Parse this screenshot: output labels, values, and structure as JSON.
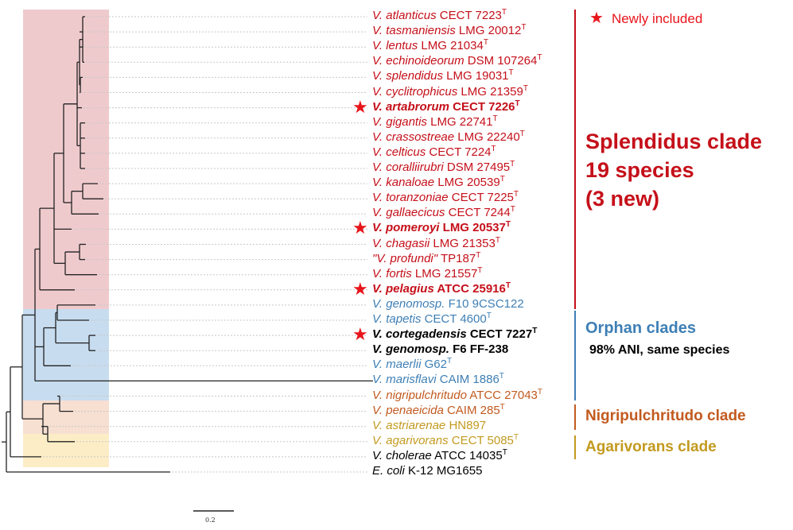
{
  "legend": {
    "star_label": "Newly included"
  },
  "taxa": [
    {
      "species": "V. atlanticus",
      "strain": "CECT 7223",
      "type": true,
      "group": "red",
      "bold": false,
      "new": false
    },
    {
      "species": "V. tasmaniensis",
      "strain": "LMG 20012",
      "type": true,
      "group": "red",
      "bold": false,
      "new": false
    },
    {
      "species": "V. lentus",
      "strain": "LMG 21034",
      "type": true,
      "group": "red",
      "bold": false,
      "new": false
    },
    {
      "species": "V. echinoideorum",
      "strain": "DSM 107264",
      "type": true,
      "group": "red",
      "bold": false,
      "new": false
    },
    {
      "species": "V. splendidus",
      "strain": "LMG 19031",
      "type": true,
      "group": "red",
      "bold": false,
      "new": false
    },
    {
      "species": "V. cyclitrophicus",
      "strain": "LMG 21359",
      "type": true,
      "group": "red",
      "bold": false,
      "new": false
    },
    {
      "species": "V. artabrorum",
      "strain": "CECT 7226",
      "type": true,
      "group": "red",
      "bold": true,
      "new": true
    },
    {
      "species": "V. gigantis",
      "strain": "LMG 22741",
      "type": true,
      "group": "red",
      "bold": false,
      "new": false
    },
    {
      "species": "V. crassostreae",
      "strain": "LMG 22240",
      "type": true,
      "group": "red",
      "bold": false,
      "new": false
    },
    {
      "species": "V. celticus",
      "strain": "CECT 7224",
      "type": true,
      "group": "red",
      "bold": false,
      "new": false
    },
    {
      "species": "V. coralliirubri",
      "strain": "DSM 27495",
      "type": true,
      "group": "red",
      "bold": false,
      "new": false
    },
    {
      "species": "V. kanaloae",
      "strain": "LMG 20539",
      "type": true,
      "group": "red",
      "bold": false,
      "new": false
    },
    {
      "species": "V. toranzoniae",
      "strain": "CECT 7225",
      "type": true,
      "group": "red",
      "bold": false,
      "new": false
    },
    {
      "species": "V. gallaecicus",
      "strain": "CECT 7244",
      "type": true,
      "group": "red",
      "bold": false,
      "new": false
    },
    {
      "species": "V. pomeroyi",
      "strain": "LMG 20537",
      "type": true,
      "group": "red",
      "bold": true,
      "new": true
    },
    {
      "species": "V. chagasii",
      "strain": "LMG 21353",
      "type": true,
      "group": "red",
      "bold": false,
      "new": false
    },
    {
      "species": "\"V. profundi\"",
      "strain": "TP187",
      "type": true,
      "group": "red",
      "bold": false,
      "new": false
    },
    {
      "species": "V. fortis",
      "strain": "LMG 21557",
      "type": true,
      "group": "red",
      "bold": false,
      "new": false
    },
    {
      "species": "V. pelagius",
      "strain": "ATCC 25916",
      "type": true,
      "group": "red",
      "bold": true,
      "new": true
    },
    {
      "species": "V. genomosp.",
      "strain": "F10 9CSC122",
      "type": false,
      "group": "blue",
      "bold": false,
      "new": false
    },
    {
      "species": "V. tapetis",
      "strain": "CECT 4600",
      "type": true,
      "group": "blue",
      "bold": false,
      "new": false
    },
    {
      "species": "V. cortegadensis",
      "strain": "CECT 7227",
      "type": true,
      "group": "black",
      "bold": true,
      "new": true
    },
    {
      "species": "V. genomosp.",
      "strain": "F6 FF-238",
      "type": false,
      "group": "black",
      "bold": true,
      "new": false
    },
    {
      "species": "V. maerlii",
      "strain": "G62",
      "type": true,
      "group": "blue",
      "bold": false,
      "new": false
    },
    {
      "species": "V. marisflavi",
      "strain": "CAIM 1886",
      "type": true,
      "group": "blue",
      "bold": false,
      "new": false
    },
    {
      "species": "V. nigripulchritudo",
      "strain": "ATCC 27043",
      "type": true,
      "group": "orange",
      "bold": false,
      "new": false
    },
    {
      "species": "V. penaeicida",
      "strain": "CAIM 285",
      "type": true,
      "group": "orange",
      "bold": false,
      "new": false
    },
    {
      "species": "V. astriarenae",
      "strain": "HN897",
      "type": false,
      "group": "gold",
      "bold": false,
      "new": false
    },
    {
      "species": "V. agarivorans",
      "strain": "CECT 5085",
      "type": true,
      "group": "gold",
      "bold": false,
      "new": false
    },
    {
      "species": "V. cholerae",
      "strain": "ATCC 14035",
      "type": true,
      "group": "black",
      "bold": false,
      "new": false
    },
    {
      "species": "E. coli",
      "strain": "K-12 MG1655",
      "type": false,
      "group": "black",
      "bold": false,
      "new": false
    }
  ],
  "type_marker": "T",
  "clades": {
    "splendidus": {
      "line1": "Splendidus clade",
      "line2": "19 species",
      "line3": "(3 new)",
      "color": "#c5101a",
      "shade": "#eab8bc"
    },
    "orphan": {
      "line1": "Orphan clades",
      "note": "98% ANI, same species",
      "color": "#3e7fb5",
      "shade": "#bdd6ec"
    },
    "nigripulchritudo": {
      "line1": "Nigripulchritudo clade",
      "color": "#c25a1f",
      "shade": "#f6dccd"
    },
    "agarivorans": {
      "line1": "Agarivorans clade",
      "color": "#c39a1f",
      "shade": "#fcebc0"
    }
  },
  "scale_bar": {
    "label": "0.2"
  },
  "colors": {
    "star": "#e8141b",
    "red": "#c5101a",
    "blue": "#3e7fb5",
    "orange": "#c25a1f",
    "gold": "#c39a1f",
    "black": "#000000"
  }
}
